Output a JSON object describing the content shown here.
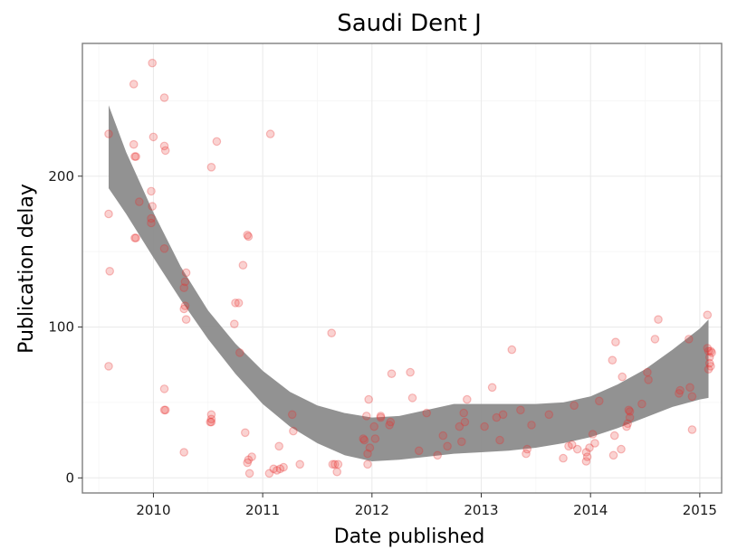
{
  "chart_data": {
    "type": "scatter",
    "title": "Saudi Dent J",
    "xlabel": "Date published",
    "ylabel": "Publication delay",
    "xlim": [
      2009.35,
      2015.2
    ],
    "ylim": [
      -10,
      288
    ],
    "x_ticks": [
      2010,
      2011,
      2012,
      2013,
      2014,
      2015
    ],
    "x_tick_labels": [
      "2010",
      "2011",
      "2012",
      "2013",
      "2014",
      "2015"
    ],
    "y_ticks": [
      0,
      100,
      200
    ],
    "y_tick_labels": [
      "0",
      "100",
      "200"
    ],
    "grid": true,
    "point_color": "#e8302f",
    "band_color": "#8c8c8c",
    "points": [
      {
        "x": 2009.59,
        "y": 228
      },
      {
        "x": 2009.59,
        "y": 175
      },
      {
        "x": 2009.6,
        "y": 137
      },
      {
        "x": 2009.59,
        "y": 74
      },
      {
        "x": 2009.82,
        "y": 261
      },
      {
        "x": 2009.82,
        "y": 221
      },
      {
        "x": 2009.83,
        "y": 213
      },
      {
        "x": 2009.84,
        "y": 213
      },
      {
        "x": 2009.83,
        "y": 159
      },
      {
        "x": 2009.84,
        "y": 159
      },
      {
        "x": 2009.87,
        "y": 183
      },
      {
        "x": 2009.99,
        "y": 275
      },
      {
        "x": 2010.0,
        "y": 226
      },
      {
        "x": 2009.98,
        "y": 190
      },
      {
        "x": 2009.99,
        "y": 180
      },
      {
        "x": 2009.98,
        "y": 172
      },
      {
        "x": 2009.98,
        "y": 169
      },
      {
        "x": 2010.1,
        "y": 252
      },
      {
        "x": 2010.1,
        "y": 220
      },
      {
        "x": 2010.11,
        "y": 217
      },
      {
        "x": 2010.1,
        "y": 152
      },
      {
        "x": 2010.1,
        "y": 59
      },
      {
        "x": 2010.1,
        "y": 45
      },
      {
        "x": 2010.11,
        "y": 45
      },
      {
        "x": 2010.3,
        "y": 136
      },
      {
        "x": 2010.29,
        "y": 130
      },
      {
        "x": 2010.28,
        "y": 126
      },
      {
        "x": 2010.29,
        "y": 114
      },
      {
        "x": 2010.28,
        "y": 112
      },
      {
        "x": 2010.3,
        "y": 105
      },
      {
        "x": 2010.28,
        "y": 17
      },
      {
        "x": 2010.53,
        "y": 206
      },
      {
        "x": 2010.58,
        "y": 223
      },
      {
        "x": 2010.53,
        "y": 42
      },
      {
        "x": 2010.53,
        "y": 39
      },
      {
        "x": 2010.52,
        "y": 37
      },
      {
        "x": 2010.53,
        "y": 37
      },
      {
        "x": 2010.75,
        "y": 116
      },
      {
        "x": 2010.78,
        "y": 116
      },
      {
        "x": 2010.74,
        "y": 102
      },
      {
        "x": 2010.79,
        "y": 83
      },
      {
        "x": 2010.82,
        "y": 141
      },
      {
        "x": 2010.86,
        "y": 161
      },
      {
        "x": 2010.87,
        "y": 160
      },
      {
        "x": 2010.84,
        "y": 30
      },
      {
        "x": 2010.87,
        "y": 12
      },
      {
        "x": 2010.86,
        "y": 10
      },
      {
        "x": 2010.9,
        "y": 14
      },
      {
        "x": 2010.88,
        "y": 3
      },
      {
        "x": 2011.07,
        "y": 228
      },
      {
        "x": 2011.06,
        "y": 3
      },
      {
        "x": 2011.1,
        "y": 6
      },
      {
        "x": 2011.13,
        "y": 5
      },
      {
        "x": 2011.16,
        "y": 6
      },
      {
        "x": 2011.19,
        "y": 7
      },
      {
        "x": 2011.15,
        "y": 21
      },
      {
        "x": 2011.27,
        "y": 42
      },
      {
        "x": 2011.28,
        "y": 31
      },
      {
        "x": 2011.34,
        "y": 9
      },
      {
        "x": 2011.63,
        "y": 96
      },
      {
        "x": 2011.64,
        "y": 9
      },
      {
        "x": 2011.66,
        "y": 9
      },
      {
        "x": 2011.69,
        "y": 9
      },
      {
        "x": 2011.68,
        "y": 4
      },
      {
        "x": 2011.92,
        "y": 26
      },
      {
        "x": 2011.93,
        "y": 25
      },
      {
        "x": 2011.95,
        "y": 41
      },
      {
        "x": 2011.97,
        "y": 52
      },
      {
        "x": 2011.96,
        "y": 16
      },
      {
        "x": 2011.96,
        "y": 9
      },
      {
        "x": 2011.98,
        "y": 20
      },
      {
        "x": 2012.02,
        "y": 34
      },
      {
        "x": 2012.03,
        "y": 26
      },
      {
        "x": 2012.08,
        "y": 40
      },
      {
        "x": 2012.08,
        "y": 41
      },
      {
        "x": 2012.17,
        "y": 37
      },
      {
        "x": 2012.18,
        "y": 69
      },
      {
        "x": 2012.16,
        "y": 35
      },
      {
        "x": 2012.35,
        "y": 70
      },
      {
        "x": 2012.37,
        "y": 53
      },
      {
        "x": 2012.43,
        "y": 18
      },
      {
        "x": 2012.5,
        "y": 43
      },
      {
        "x": 2012.6,
        "y": 15
      },
      {
        "x": 2012.65,
        "y": 28
      },
      {
        "x": 2012.69,
        "y": 21
      },
      {
        "x": 2012.8,
        "y": 34
      },
      {
        "x": 2012.82,
        "y": 24
      },
      {
        "x": 2012.84,
        "y": 43
      },
      {
        "x": 2012.85,
        "y": 37
      },
      {
        "x": 2012.87,
        "y": 52
      },
      {
        "x": 2013.03,
        "y": 34
      },
      {
        "x": 2013.1,
        "y": 60
      },
      {
        "x": 2013.14,
        "y": 40
      },
      {
        "x": 2013.17,
        "y": 25
      },
      {
        "x": 2013.2,
        "y": 42
      },
      {
        "x": 2013.28,
        "y": 85
      },
      {
        "x": 2013.36,
        "y": 45
      },
      {
        "x": 2013.41,
        "y": 16
      },
      {
        "x": 2013.42,
        "y": 19
      },
      {
        "x": 2013.46,
        "y": 35
      },
      {
        "x": 2013.62,
        "y": 42
      },
      {
        "x": 2013.75,
        "y": 13
      },
      {
        "x": 2013.8,
        "y": 21
      },
      {
        "x": 2013.83,
        "y": 22
      },
      {
        "x": 2013.85,
        "y": 48
      },
      {
        "x": 2013.88,
        "y": 19
      },
      {
        "x": 2013.96,
        "y": 11
      },
      {
        "x": 2013.96,
        "y": 17
      },
      {
        "x": 2013.97,
        "y": 14
      },
      {
        "x": 2013.99,
        "y": 20
      },
      {
        "x": 2014.02,
        "y": 29
      },
      {
        "x": 2014.04,
        "y": 23
      },
      {
        "x": 2014.08,
        "y": 51
      },
      {
        "x": 2014.2,
        "y": 78
      },
      {
        "x": 2014.21,
        "y": 15
      },
      {
        "x": 2014.22,
        "y": 28
      },
      {
        "x": 2014.23,
        "y": 90
      },
      {
        "x": 2014.28,
        "y": 19
      },
      {
        "x": 2014.29,
        "y": 67
      },
      {
        "x": 2014.33,
        "y": 34
      },
      {
        "x": 2014.34,
        "y": 36
      },
      {
        "x": 2014.36,
        "y": 40
      },
      {
        "x": 2014.35,
        "y": 45
      },
      {
        "x": 2014.36,
        "y": 44
      },
      {
        "x": 2014.47,
        "y": 49
      },
      {
        "x": 2014.52,
        "y": 70
      },
      {
        "x": 2014.53,
        "y": 65
      },
      {
        "x": 2014.59,
        "y": 92
      },
      {
        "x": 2014.62,
        "y": 105
      },
      {
        "x": 2014.81,
        "y": 56
      },
      {
        "x": 2014.82,
        "y": 58
      },
      {
        "x": 2014.9,
        "y": 92
      },
      {
        "x": 2014.91,
        "y": 60
      },
      {
        "x": 2014.93,
        "y": 54
      },
      {
        "x": 2014.93,
        "y": 32
      },
      {
        "x": 2015.07,
        "y": 108
      },
      {
        "x": 2015.07,
        "y": 86
      },
      {
        "x": 2015.08,
        "y": 84
      },
      {
        "x": 2015.09,
        "y": 80
      },
      {
        "x": 2015.1,
        "y": 84
      },
      {
        "x": 2015.11,
        "y": 83
      },
      {
        "x": 2015.09,
        "y": 76
      },
      {
        "x": 2015.08,
        "y": 72
      },
      {
        "x": 2015.1,
        "y": 74
      }
    ],
    "smooth_band": {
      "x": [
        2009.59,
        2009.75,
        2010.0,
        2010.25,
        2010.5,
        2010.75,
        2011.0,
        2011.25,
        2011.5,
        2011.75,
        2012.0,
        2012.25,
        2012.5,
        2012.75,
        2013.0,
        2013.25,
        2013.5,
        2013.75,
        2014.0,
        2014.25,
        2014.5,
        2014.75,
        2015.0,
        2015.08
      ],
      "lower": [
        192,
        175,
        146,
        118,
        92,
        69,
        49,
        34,
        23,
        15,
        11,
        12,
        14,
        16,
        17,
        18,
        20,
        23,
        27,
        33,
        40,
        47,
        52,
        53
      ],
      "upper": [
        247,
        216,
        176,
        140,
        111,
        89,
        71,
        57,
        48,
        43,
        40,
        41,
        45,
        49,
        49,
        49,
        49,
        50,
        54,
        62,
        72,
        85,
        99,
        105
      ]
    }
  }
}
